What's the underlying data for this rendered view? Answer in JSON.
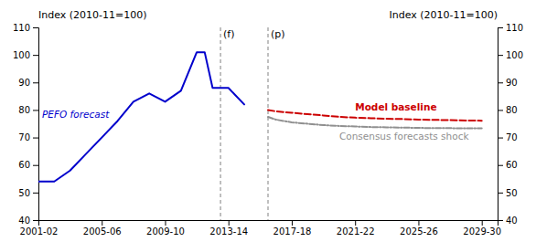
{
  "chart_data": {
    "type": "line",
    "ylabel": "Index (2010-11=100)",
    "y2label": "Index (2010-11=100)",
    "xlim": [
      2001,
      2030
    ],
    "xticks": [
      {
        "value": 2001,
        "label": "2001-02"
      },
      {
        "value": 2005,
        "label": "2005-06"
      },
      {
        "value": 2009,
        "label": "2009-10"
      },
      {
        "value": 2013,
        "label": "2013-14"
      },
      {
        "value": 2017,
        "label": "2017-18"
      },
      {
        "value": 2021,
        "label": "2021-22"
      },
      {
        "value": 2025,
        "label": "2025-26"
      },
      {
        "value": 2029,
        "label": "2029-30"
      }
    ],
    "ylim": [
      40,
      110
    ],
    "yticks": [
      40,
      50,
      60,
      70,
      80,
      90,
      100,
      110
    ],
    "y2lim": [
      40,
      110
    ],
    "y2ticks": [
      40,
      50,
      60,
      70,
      80,
      90,
      100,
      110
    ],
    "grid": false,
    "annotations": [
      {
        "text": "(f)",
        "x": 2012.5,
        "color": "#808080"
      },
      {
        "text": "(p)",
        "x": 2015.5,
        "color": "#808080"
      }
    ],
    "series": [
      {
        "name": "PEFO forecast",
        "color": "#0000cc",
        "line_style": "solid",
        "x": [
          2001,
          2002,
          2003,
          2004,
          2005,
          2006,
          2007,
          2008,
          2009,
          2010,
          2011,
          2011.5,
          2012,
          2013,
          2014
        ],
        "values": [
          54,
          54,
          58,
          64,
          70,
          76,
          83,
          86,
          83,
          87,
          101,
          101,
          88,
          88,
          82
        ]
      },
      {
        "name": "Model baseline",
        "color": "#cc0000",
        "line_style": "dashed",
        "x": [
          2015.5,
          2016,
          2017,
          2018,
          2019,
          2020,
          2021,
          2022,
          2023,
          2024,
          2025,
          2026,
          2027,
          2028,
          2029
        ],
        "values": [
          80,
          79.5,
          79,
          78.5,
          78,
          77.5,
          77.2,
          77.0,
          76.8,
          76.7,
          76.5,
          76.4,
          76.3,
          76.2,
          76.1
        ]
      },
      {
        "name": "Consensus forecasts shock",
        "color": "#909090",
        "line_style": "dashdot",
        "x": [
          2015.5,
          2016,
          2017,
          2018,
          2019,
          2020,
          2021,
          2022,
          2023,
          2024,
          2025,
          2026,
          2027,
          2028,
          2029
        ],
        "values": [
          77.5,
          76.5,
          75.5,
          75.0,
          74.5,
          74.2,
          74.0,
          73.8,
          73.7,
          73.6,
          73.5,
          73.4,
          73.4,
          73.3,
          73.3
        ]
      }
    ]
  }
}
